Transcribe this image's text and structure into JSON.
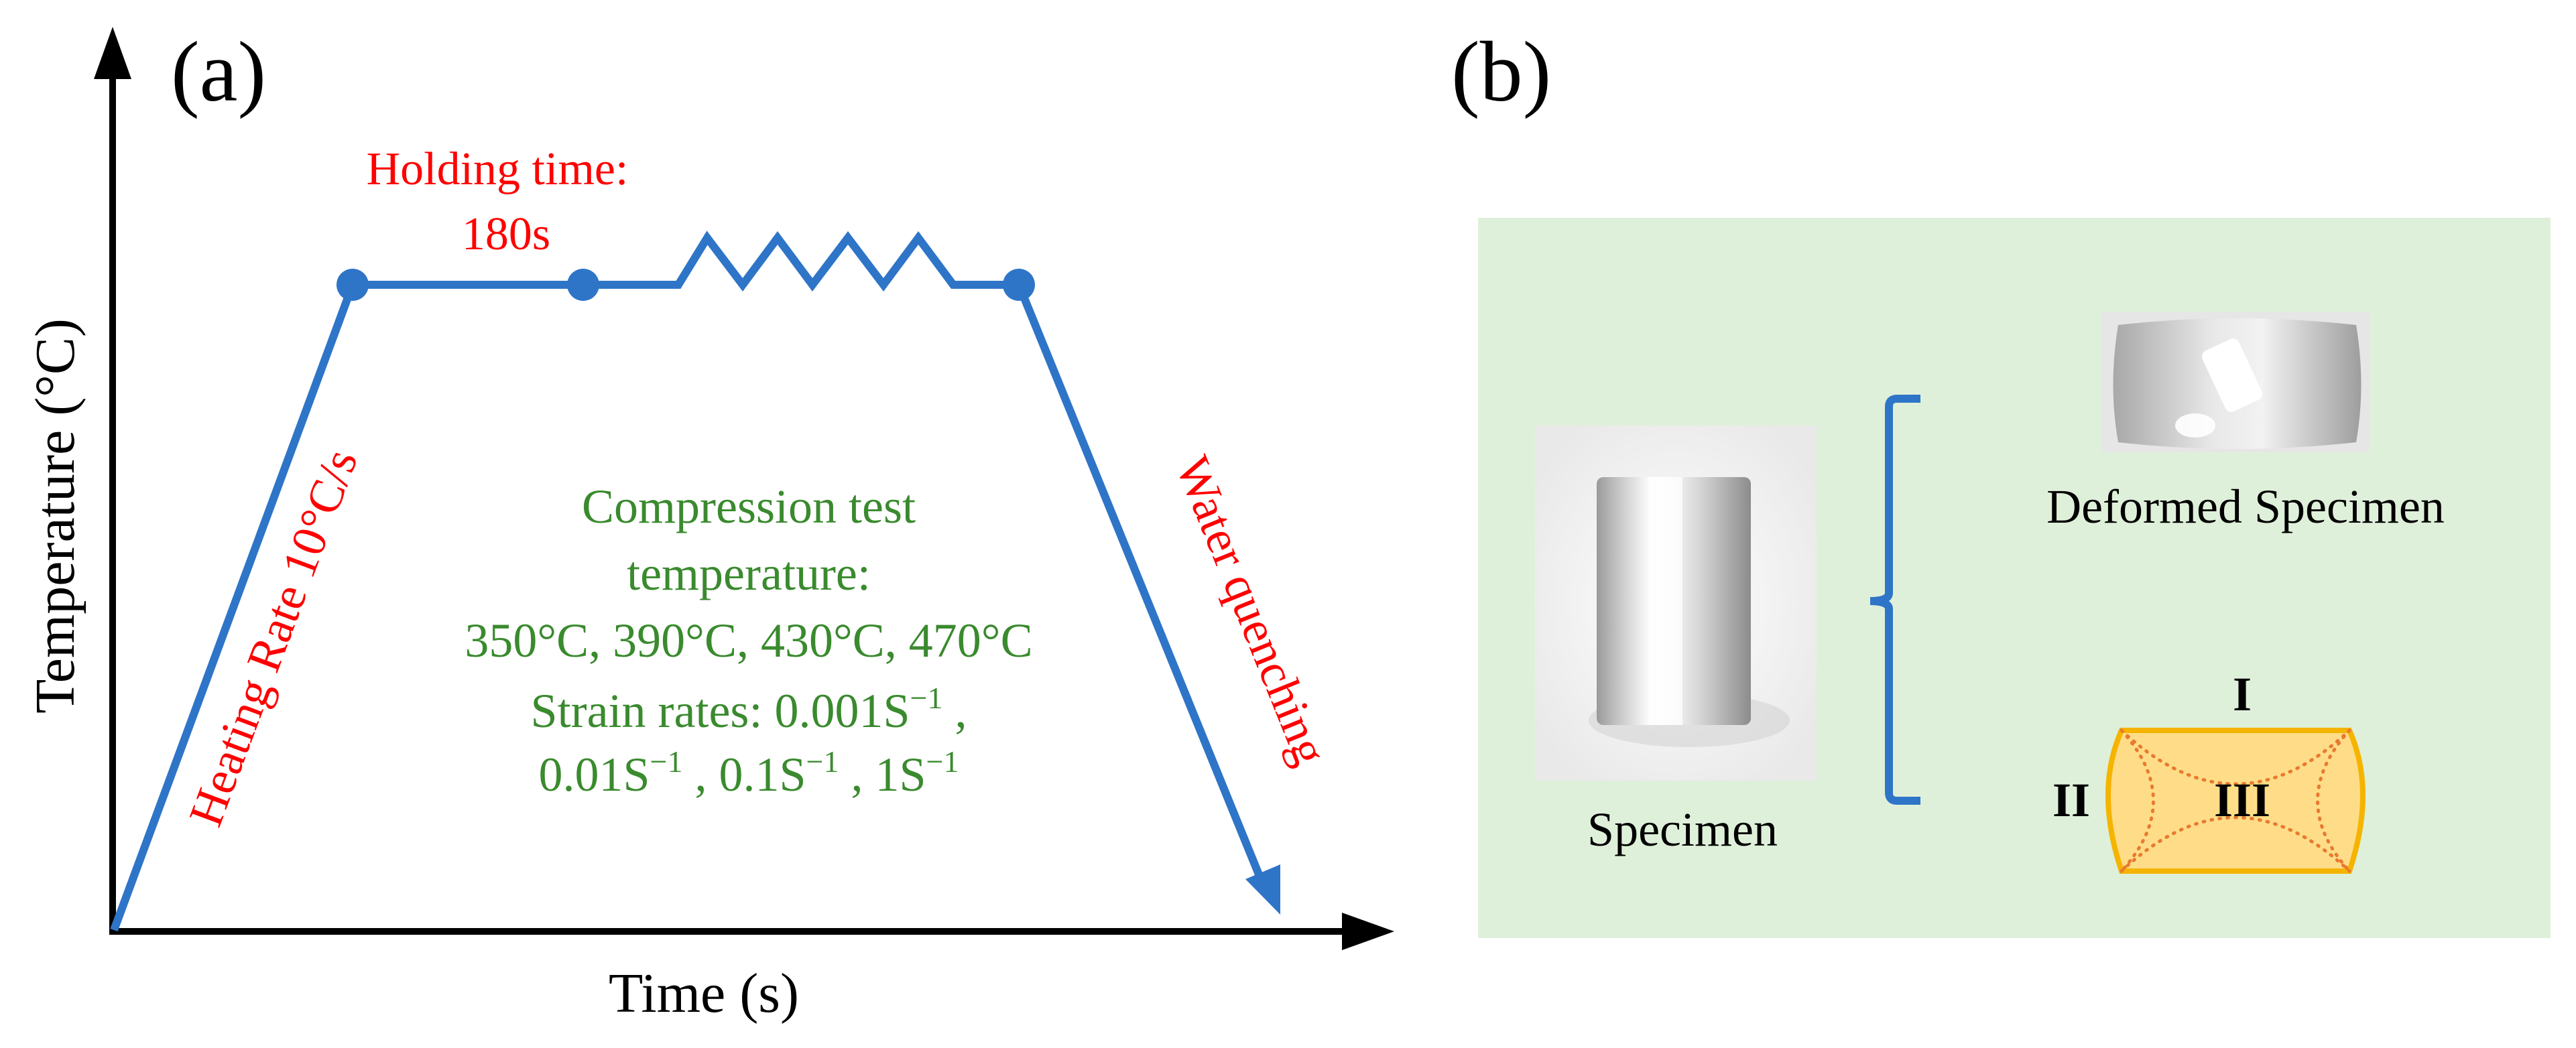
{
  "panel_a": {
    "label": "(a)",
    "y_axis_label": "Temperature (°C)",
    "x_axis_label": "Time (s)",
    "heating_label": "Heating Rate 10°C/s",
    "holding_line1": "Holding time:",
    "holding_line2": "180s",
    "quench_label": "Water quenching",
    "test_lines": [
      "Compression test",
      "temperature:",
      "350°C, 390°C, 430°C, 470°C"
    ],
    "strain_rates": {
      "prefix": "Strain rates: ",
      "v1": "0.001S",
      "v2": "0.01S",
      "v3": "0.1S",
      "v4": "1S",
      "exponent": "−1",
      "separator": " , "
    }
  },
  "panel_b": {
    "label": "(b)",
    "specimen_label": "Specimen",
    "deformed_label": "Deformed Specimen",
    "zone_I": "I",
    "zone_II": "II",
    "zone_III": "III"
  },
  "colors": {
    "curve": "#2e75c8",
    "red_text": "#ff0000",
    "green_text": "#3a8a2e",
    "panel_b_bg": "#dff0da",
    "barrel_fill": "#ffdd88",
    "barrel_stroke": "#f5b400",
    "dots": "#e87a30"
  }
}
